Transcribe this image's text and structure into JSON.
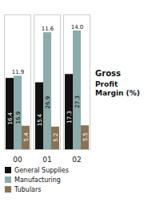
{
  "chart_data": {
    "type": "bar",
    "title": "Gross",
    "subtitle": "Profit Margin (%)",
    "categories": [
      "00",
      "01",
      "02"
    ],
    "series": [
      {
        "name": "General Supplies",
        "color": "#111111",
        "values": [
          16.4,
          15.4,
          17.3
        ]
      },
      {
        "name": "Manufacturing",
        "color": "#8aacaa",
        "values": [
          16.9,
          26.9,
          27.3
        ]
      },
      {
        "name": "Tubulars",
        "color": "#8a7355",
        "values": [
          5.4,
          5.2,
          5.5
        ]
      }
    ],
    "annotations": [
      {
        "category": "00",
        "series": "Manufacturing",
        "text": "11.9"
      },
      {
        "category": "01",
        "series": "Manufacturing",
        "text": "11.6"
      },
      {
        "category": "02",
        "series": "Manufacturing",
        "text": "14.0"
      }
    ],
    "ylim": [
      0,
      31
    ],
    "yticks": [],
    "tick_labels": "x",
    "data_labels": true,
    "legend": "bottom",
    "grid": false
  }
}
